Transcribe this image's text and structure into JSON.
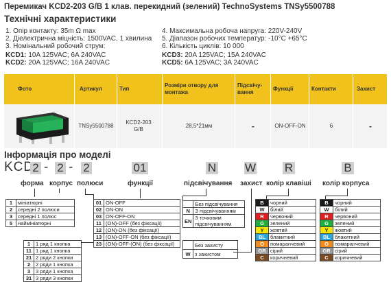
{
  "title": "Перемикач KCD2-203 G/B 1 клав. перекидний (зелений) TechnoSystems TNSy5500788",
  "specs": {
    "heading": "Технічні характеристики",
    "left": [
      "1. Опір контакту: 35m Ω  max",
      "2. Діелектрична міцність:  1500VAC, 1 хвилина",
      "3. Номінальний робочий струм:"
    ],
    "kcd1_label": "KCD1:",
    "kcd1_value": " 10A 125VAC; 6A 240VAC",
    "kcd2_label": "KCD2:",
    "kcd2_value": " 20A 125VAC; 16A 240VAC",
    "right": [
      "4. Максимальна робоча напруга: 220V-240V",
      "5. Діапазон робочих температур: -10°C +65°C",
      "6. Кількість циклів: 10 000"
    ],
    "kcd3_label": "KCD3:",
    "kcd3_value": " 20A 125VAC; 15A 240VAC",
    "kcd5_label": "KCD5:",
    "kcd5_value": " 6A 125VAC; 3A 240VAC"
  },
  "product_table": {
    "headers": {
      "photo": "Фото",
      "article": "Артикул",
      "type": "Тип",
      "size": "Розміри отвору для монтажа",
      "backlight": "Підсвічу-вання",
      "functions": "Функції",
      "contacts": "Контакти",
      "protection": "Захист"
    },
    "row": {
      "article": "TNSy5500788",
      "type": "KCD2-203 G/B",
      "size": "28,5*21мм",
      "backlight": "-",
      "functions": "ON-OFF-ON",
      "contacts": "6",
      "protection": "-"
    }
  },
  "model": {
    "heading": "Інформація про моделі",
    "prefix": "KCD",
    "d2": "2",
    "dash1": "-",
    "d3": "2",
    "dash2": "-",
    "d4": "2",
    "c01": "01",
    "cN": "N",
    "cW": "W",
    "cR": "R",
    "cB": "B",
    "labels": {
      "form": "форма",
      "body": "корпус",
      "poles": "полюси",
      "functions": "функції",
      "backlight": "підсвічування",
      "protection": "захист",
      "key_color": "колір клавіші",
      "body_color": "колір корпуса"
    }
  },
  "form_table": [
    {
      "k": "1",
      "v": "мініатюрні"
    },
    {
      "k": "2",
      "v": "середні 2 полюси"
    },
    {
      "k": "3",
      "v": "середні 1 полюс"
    },
    {
      "k": "5",
      "v": "наймініатюрні"
    }
  ],
  "rows_table": [
    {
      "k": "1",
      "v": "1 ряд 1 кнопка"
    },
    {
      "k": "11",
      "v": "1 ряд 1 кнопка"
    },
    {
      "k": "21",
      "v": "2 ряди 2 кнопки"
    },
    {
      "k": "2",
      "v": "2 ряди 1 кнопка"
    },
    {
      "k": "3",
      "v": "3 ряди 1 кнопка"
    },
    {
      "k": "31",
      "v": "3 ряди 3 кнопки"
    }
  ],
  "func_table": [
    {
      "k": "01",
      "v": "ON-OFF"
    },
    {
      "k": "02",
      "v": "ON-ON"
    },
    {
      "k": "03",
      "v": "ON-OFF-ON"
    },
    {
      "k": "11",
      "v": "(ON)-OFF (без фіксації)"
    },
    {
      "k": "12",
      "v": "(ON)-ON (без фіксації)"
    },
    {
      "k": "13",
      "v": "(ON)-OFF-ON (без фіксації)"
    },
    {
      "k": "23",
      "v": "(ON)-OFF-(ON) (без фіксації)"
    }
  ],
  "light_table": [
    {
      "k": "",
      "v": "Без підсвічування"
    },
    {
      "k": "N",
      "v": "З підсвічуванням"
    },
    {
      "k": "EN",
      "v": "3 точковим підсвічуванням"
    }
  ],
  "protect_table": [
    {
      "k": "",
      "v": "Без захисту"
    },
    {
      "k": "W",
      "v": "з захистом"
    }
  ],
  "colors": [
    {
      "k": "B",
      "v": "чорний",
      "hex": "#1a1a1a"
    },
    {
      "k": "W",
      "v": "білий",
      "hex": "#ffffff"
    },
    {
      "k": "R",
      "v": "червоний",
      "hex": "#e02020"
    },
    {
      "k": "G",
      "v": "зелений",
      "hex": "#1fae3a"
    },
    {
      "k": "Y",
      "v": "жовтий",
      "hex": "#f4e600"
    },
    {
      "k": "BL",
      "v": "блакитний",
      "hex": "#2aa6df"
    },
    {
      "k": "O",
      "v": "помаранчевий",
      "hex": "#f28a1c"
    },
    {
      "k": "GR",
      "v": "сірий",
      "hex": "#9a9a9a"
    },
    {
      "k": "C",
      "v": "коричневий",
      "hex": "#7a4a22"
    }
  ],
  "accent_color": "#f1c21b",
  "icons": {
    "product_photo": "rocker-switch-green-icon"
  }
}
